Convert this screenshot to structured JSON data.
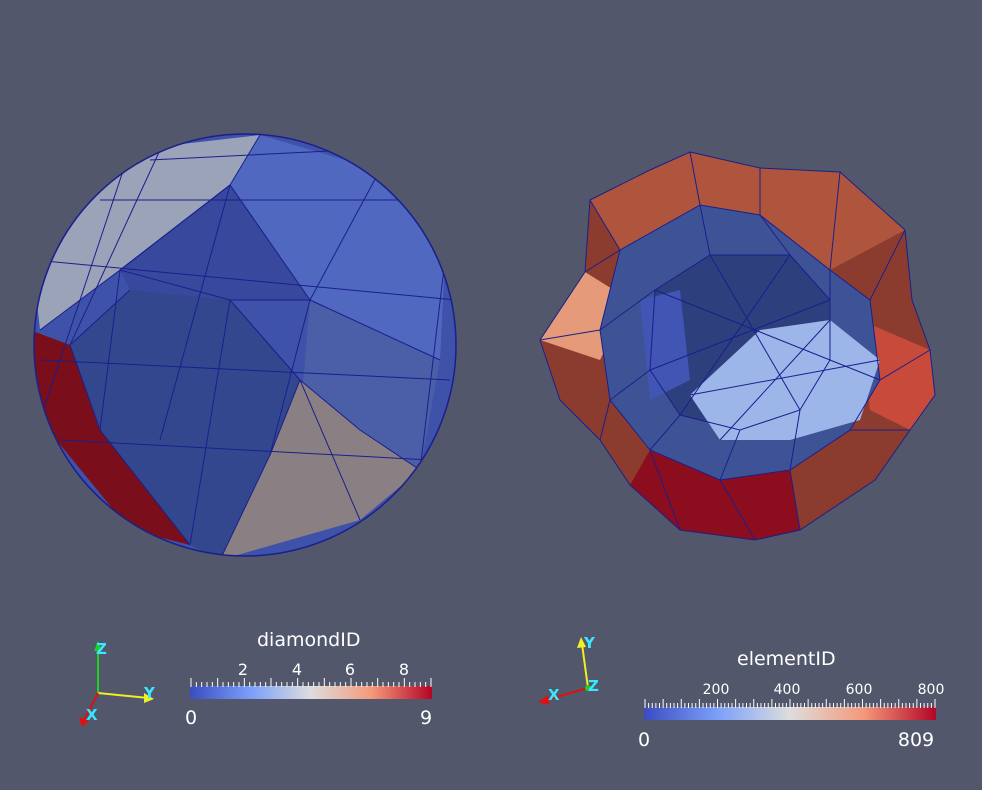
{
  "view_left": {
    "mesh": "sphere-diamond-mesh",
    "axes": {
      "x": "X",
      "y": "Y",
      "z": "Z"
    },
    "legend": {
      "title": "diamondID",
      "ticks": [
        "2",
        "4",
        "6",
        "8"
      ],
      "min_label": "0",
      "max_label": "9",
      "range": [
        0,
        9
      ],
      "tick_values": [
        2,
        4,
        6,
        8
      ]
    }
  },
  "view_right": {
    "mesh": "wavy-bowl-element-mesh",
    "axes": {
      "x": "X",
      "y": "Y",
      "z": "Z"
    },
    "legend": {
      "title": "elementID",
      "ticks": [
        "200",
        "400",
        "600",
        "800"
      ],
      "min_label": "0",
      "max_label": "809",
      "range": [
        0,
        809
      ],
      "tick_values": [
        200,
        400,
        600,
        800
      ]
    }
  },
  "colors": {
    "background": "#52576b",
    "edge": "#1a1f8c",
    "cool": "#3b4cc0",
    "warm": "#b40426",
    "axis_x": "#e01010",
    "axis_y": "#f0f020",
    "axis_z": "#20d020",
    "axis_label": "#39e8ff"
  }
}
